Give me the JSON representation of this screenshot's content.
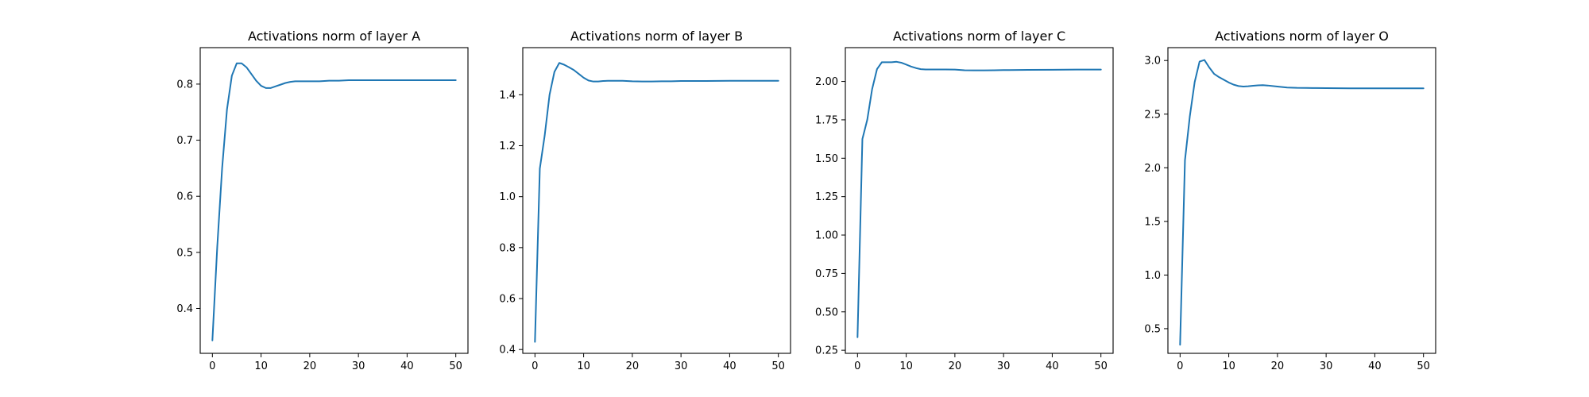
{
  "chart_data": [
    {
      "type": "line",
      "title": "Activations norm of layer A",
      "xlabel": "",
      "ylabel": "",
      "xlim": [
        -2.5,
        52.5
      ],
      "ylim": [
        0.32,
        0.865
      ],
      "xticks": [
        0,
        10,
        20,
        30,
        40,
        50
      ],
      "xtick_labels": [
        "0",
        "10",
        "20",
        "30",
        "40",
        "50"
      ],
      "yticks": [
        0.4,
        0.5,
        0.6,
        0.7,
        0.8
      ],
      "ytick_labels": [
        "0.4",
        "0.5",
        "0.6",
        "0.7",
        "0.8"
      ],
      "grid": false,
      "series": [
        {
          "color": "#1f77b4",
          "x": [
            0,
            1,
            2,
            3,
            4,
            5,
            6,
            7,
            8,
            9,
            10,
            11,
            12,
            13,
            14,
            15,
            16,
            17,
            18,
            19,
            20,
            22,
            24,
            26,
            28,
            30,
            35,
            40,
            45,
            50
          ],
          "y": [
            0.343,
            0.51,
            0.65,
            0.755,
            0.815,
            0.837,
            0.837,
            0.83,
            0.818,
            0.806,
            0.797,
            0.793,
            0.793,
            0.796,
            0.799,
            0.802,
            0.804,
            0.805,
            0.805,
            0.805,
            0.805,
            0.805,
            0.806,
            0.806,
            0.807,
            0.807,
            0.807,
            0.807,
            0.807,
            0.807
          ]
        }
      ]
    },
    {
      "type": "line",
      "title": "Activations norm of layer B",
      "xlabel": "",
      "ylabel": "",
      "xlim": [
        -2.5,
        52.5
      ],
      "ylim": [
        0.385,
        1.585
      ],
      "xticks": [
        0,
        10,
        20,
        30,
        40,
        50
      ],
      "xtick_labels": [
        "0",
        "10",
        "20",
        "30",
        "40",
        "50"
      ],
      "yticks": [
        0.4,
        0.6,
        0.8,
        1.0,
        1.2,
        1.4
      ],
      "ytick_labels": [
        "0.4",
        "0.6",
        "0.8",
        "1.0",
        "1.2",
        "1.4"
      ],
      "grid": false,
      "series": [
        {
          "color": "#1f77b4",
          "x": [
            0,
            1,
            2,
            3,
            4,
            5,
            6,
            7,
            8,
            9,
            10,
            11,
            12,
            13,
            14,
            15,
            16,
            18,
            20,
            22,
            24,
            26,
            28,
            30,
            35,
            40,
            45,
            50
          ],
          "y": [
            0.43,
            1.11,
            1.24,
            1.4,
            1.49,
            1.525,
            1.518,
            1.508,
            1.497,
            1.482,
            1.467,
            1.456,
            1.452,
            1.452,
            1.454,
            1.455,
            1.455,
            1.455,
            1.453,
            1.452,
            1.452,
            1.453,
            1.453,
            1.454,
            1.454,
            1.455,
            1.455,
            1.455
          ]
        }
      ]
    },
    {
      "type": "line",
      "title": "Activations norm of layer C",
      "xlabel": "",
      "ylabel": "",
      "xlim": [
        -2.5,
        52.5
      ],
      "ylim": [
        0.23,
        2.22
      ],
      "xticks": [
        0,
        10,
        20,
        30,
        40,
        50
      ],
      "xtick_labels": [
        "0",
        "10",
        "20",
        "30",
        "40",
        "50"
      ],
      "yticks": [
        0.25,
        0.5,
        0.75,
        1.0,
        1.25,
        1.5,
        1.75,
        2.0
      ],
      "ytick_labels": [
        "0.25",
        "0.50",
        "0.75",
        "1.00",
        "1.25",
        "1.50",
        "1.75",
        "2.00"
      ],
      "grid": false,
      "series": [
        {
          "color": "#1f77b4",
          "x": [
            0,
            1,
            2,
            3,
            4,
            5,
            6,
            7,
            8,
            9,
            10,
            11,
            12,
            13,
            14,
            15,
            16,
            18,
            20,
            22,
            24,
            26,
            28,
            30,
            35,
            40,
            45,
            50
          ],
          "y": [
            0.335,
            1.625,
            1.75,
            1.95,
            2.08,
            2.125,
            2.125,
            2.125,
            2.128,
            2.122,
            2.11,
            2.097,
            2.087,
            2.08,
            2.078,
            2.078,
            2.078,
            2.078,
            2.077,
            2.073,
            2.072,
            2.072,
            2.073,
            2.074,
            2.075,
            2.076,
            2.077,
            2.077
          ]
        }
      ]
    },
    {
      "type": "line",
      "title": "Activations norm of layer O",
      "xlabel": "",
      "ylabel": "",
      "xlim": [
        -2.5,
        52.5
      ],
      "ylim": [
        0.27,
        3.12
      ],
      "xticks": [
        0,
        10,
        20,
        30,
        40,
        50
      ],
      "xtick_labels": [
        "0",
        "10",
        "20",
        "30",
        "40",
        "50"
      ],
      "yticks": [
        0.5,
        1.0,
        1.5,
        2.0,
        2.5,
        3.0
      ],
      "ytick_labels": [
        "0.5",
        "1.0",
        "1.5",
        "2.0",
        "2.5",
        "3.0"
      ],
      "grid": false,
      "series": [
        {
          "color": "#1f77b4",
          "x": [
            0,
            1,
            2,
            3,
            4,
            5,
            6,
            7,
            8,
            9,
            10,
            11,
            12,
            13,
            14,
            15,
            16,
            17,
            18,
            20,
            22,
            24,
            26,
            28,
            30,
            35,
            40,
            45,
            50
          ],
          "y": [
            0.35,
            2.07,
            2.48,
            2.8,
            2.99,
            3.005,
            2.935,
            2.875,
            2.845,
            2.82,
            2.795,
            2.775,
            2.762,
            2.757,
            2.76,
            2.765,
            2.768,
            2.77,
            2.767,
            2.757,
            2.748,
            2.745,
            2.744,
            2.743,
            2.742,
            2.741,
            2.741,
            2.741,
            2.741
          ]
        }
      ]
    }
  ]
}
